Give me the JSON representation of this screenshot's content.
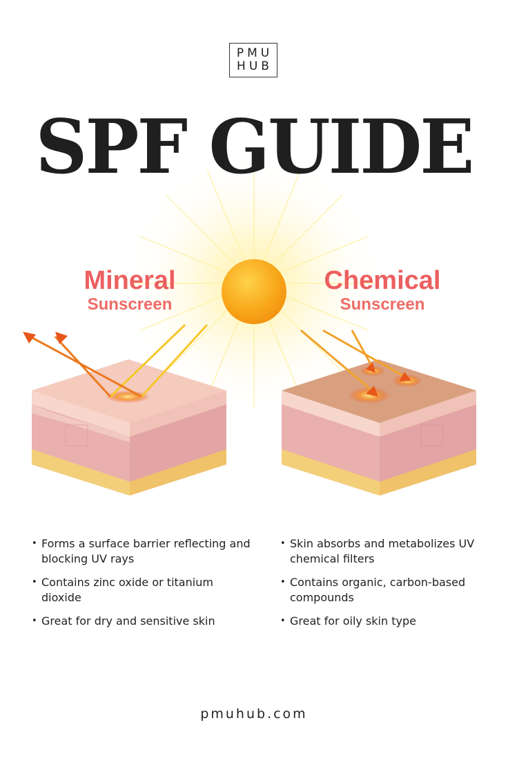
{
  "logo": {
    "line1": "PMU",
    "line2": "HUB"
  },
  "title": "SPF GUIDE",
  "mineral": {
    "heading": "Mineral",
    "subheading": "Sunscreen",
    "bullets": [
      "Forms a surface barrier reflecting and blocking UV rays",
      "Contains zinc oxide or titanium dioxide",
      "Great for dry and sensitive skin"
    ]
  },
  "chemical": {
    "heading": "Chemical",
    "subheading": "Sunscreen",
    "bullets": [
      "Skin absorbs and metabolizes UV chemical filters",
      "Contains organic, carbon-based compounds",
      "Great for oily skin type"
    ]
  },
  "footer": "pmuhub.com",
  "colors": {
    "heading": "#ec5f5f",
    "sun": "#f7a21b",
    "arrow": "#e8571a",
    "skin_top": "#f2c2b4",
    "skin_side": "#e7aaa8",
    "fat_layer": "#f3cf7a"
  },
  "icons": [
    "sun-icon",
    "arrow-icon"
  ]
}
